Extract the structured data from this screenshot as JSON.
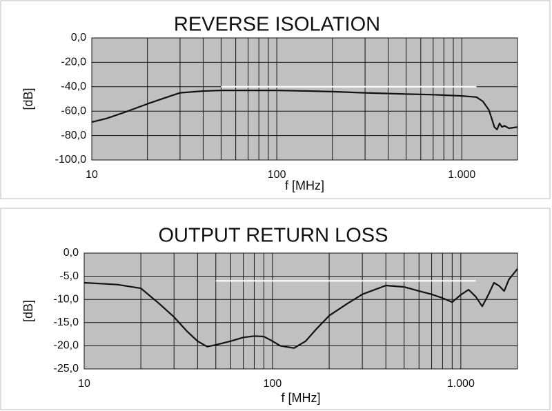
{
  "chart_data": [
    {
      "type": "line",
      "title": "REVERSE ISOLATION",
      "x_label": "f [MHz]",
      "y_label": "[dB]",
      "log_x": true,
      "grid": true,
      "plot_background": "#c0c0c0",
      "xlim": [
        10,
        2000
      ],
      "xticks": [
        10,
        100,
        {
          "value": 1000,
          "label": "1.000"
        }
      ],
      "xgrid_minor": [
        20,
        30,
        40,
        50,
        60,
        70,
        80,
        90,
        200,
        300,
        400,
        500,
        600,
        700,
        800,
        900
      ],
      "ylim": [
        -100,
        0
      ],
      "yticks": [
        {
          "value": 0,
          "label": "0,0"
        },
        {
          "value": -20,
          "label": "-20,0"
        },
        {
          "value": -40,
          "label": "-40,0"
        },
        {
          "value": -60,
          "label": "-60,0"
        },
        {
          "value": -80,
          "label": "-80,0"
        },
        {
          "value": -100,
          "label": "-100,0"
        }
      ],
      "series": [
        {
          "color": "#ffffff",
          "x": [
            50,
            1200
          ],
          "values": [
            -40,
            -40
          ]
        },
        {
          "color": "#111111",
          "x": [
            10,
            12,
            15,
            20,
            25,
            30,
            40,
            50,
            70,
            100,
            150,
            200,
            300,
            500,
            700,
            1000,
            1200,
            1300,
            1400,
            1450,
            1500,
            1550,
            1600,
            1650,
            1700,
            1800,
            2000
          ],
          "values": [
            -69,
            -66,
            -61,
            -54,
            -49,
            -45,
            -43.5,
            -43,
            -43,
            -43,
            -43.5,
            -44,
            -45,
            -46,
            -46.5,
            -47.5,
            -48.5,
            -52,
            -59,
            -66,
            -73,
            -75,
            -70,
            -73,
            -72,
            -74,
            -73
          ]
        }
      ]
    },
    {
      "type": "line",
      "title": "OUTPUT RETURN LOSS",
      "x_label": "f [MHz]",
      "y_label": "[dB]",
      "log_x": true,
      "grid": true,
      "plot_background": "#c0c0c0",
      "xlim": [
        10,
        2000
      ],
      "xticks": [
        10,
        100,
        {
          "value": 1000,
          "label": "1.000"
        }
      ],
      "xgrid_minor": [
        20,
        30,
        40,
        50,
        60,
        70,
        80,
        90,
        200,
        300,
        400,
        500,
        600,
        700,
        800,
        900
      ],
      "ylim": [
        -25,
        0
      ],
      "yticks": [
        {
          "value": 0,
          "label": "0,0"
        },
        {
          "value": -5,
          "label": "-5,0"
        },
        {
          "value": -10,
          "label": "-10,0"
        },
        {
          "value": -15,
          "label": "-15,0"
        },
        {
          "value": -20,
          "label": "-20,0"
        },
        {
          "value": -25,
          "label": "-25,0"
        }
      ],
      "series": [
        {
          "color": "#ffffff",
          "x": [
            50,
            1200
          ],
          "values": [
            -6,
            -6
          ]
        },
        {
          "color": "#111111",
          "x": [
            10,
            15,
            20,
            25,
            30,
            35,
            40,
            45,
            50,
            60,
            70,
            80,
            90,
            100,
            110,
            130,
            150,
            170,
            200,
            250,
            300,
            400,
            500,
            600,
            700,
            800,
            900,
            1000,
            1100,
            1200,
            1300,
            1400,
            1500,
            1600,
            1700,
            1800,
            2000
          ],
          "values": [
            -6.4,
            -6.8,
            -7.6,
            -10.9,
            -13.8,
            -16.8,
            -19,
            -20.2,
            -19.8,
            -19,
            -18.2,
            -17.9,
            -18,
            -19,
            -20,
            -20.5,
            -19,
            -16.5,
            -13.5,
            -10.9,
            -8.9,
            -7,
            -7.3,
            -8.2,
            -8.9,
            -9.7,
            -10.6,
            -9,
            -7.9,
            -9.4,
            -11.5,
            -9,
            -6.4,
            -7.1,
            -8.2,
            -5.7,
            -3.4
          ]
        }
      ]
    }
  ]
}
